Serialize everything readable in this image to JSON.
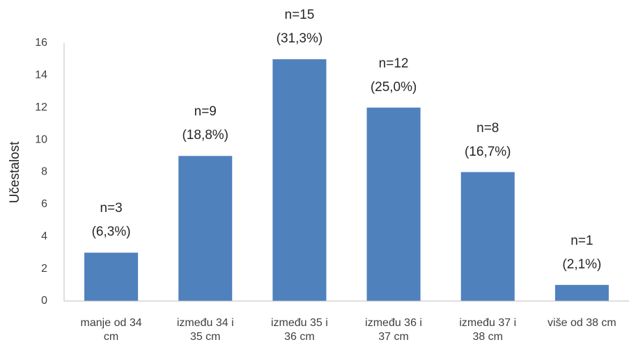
{
  "chart_data": {
    "type": "bar",
    "y_label": "Učestalost",
    "categories": [
      "manje od 34\ncm",
      "između 34 i\n35 cm",
      "između 35 i\n36 cm",
      "između 36 i\n37 cm",
      "između 37 i\n38 cm",
      "više od 38 cm"
    ],
    "values": [
      3,
      9,
      15,
      12,
      8,
      1
    ],
    "value_labels": [
      "n=3\n(6,3%)",
      "n=9\n(18,8%)",
      "n=15\n(31,3%)",
      "n=12\n(25,0%)",
      "n=8\n(16,7%)",
      "n=1\n(2,1%)"
    ],
    "color": "#4f81bd",
    "ylim": [
      0,
      16
    ],
    "yticks": [
      0,
      2,
      4,
      6,
      8,
      10,
      12,
      14,
      16
    ],
    "grid": false
  }
}
